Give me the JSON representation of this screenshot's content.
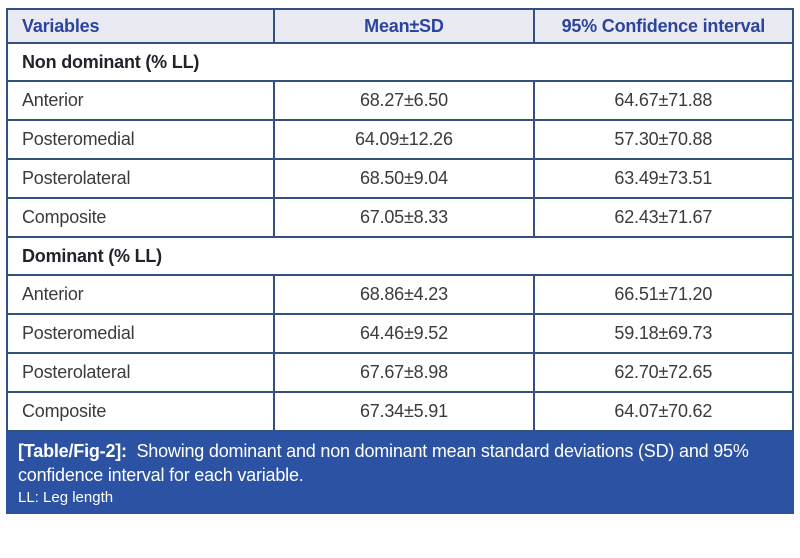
{
  "table": {
    "header": {
      "variables": "Variables",
      "mean_sd": "Mean±SD",
      "ci": "95% Confidence interval"
    },
    "sections": [
      {
        "label": "Non dominant (% LL)",
        "rows": [
          [
            "Anterior",
            "68.27±6.50",
            "64.67±71.88"
          ],
          [
            "Posteromedial",
            "64.09±12.26",
            "57.30±70.88"
          ],
          [
            "Posterolateral",
            "68.50±9.04",
            "63.49±73.51"
          ],
          [
            "Composite",
            "67.05±8.33",
            "62.43±71.67"
          ]
        ]
      },
      {
        "label": "Dominant (% LL)",
        "rows": [
          [
            "Anterior",
            "68.86±4.23",
            "66.51±71.20"
          ],
          [
            "Posteromedial",
            "64.46±9.52",
            "59.18±69.73"
          ],
          [
            "Posterolateral",
            "67.67±8.98",
            "62.70±72.65"
          ],
          [
            "Composite",
            "67.34±5.91",
            "64.07±70.62"
          ]
        ]
      }
    ]
  },
  "caption": {
    "tag": "[Table/Fig-2]:",
    "text": "Showing dominant and non dominant mean standard deviations (SD) and 95% confidence interval for each variable.",
    "footnote": "LL: Leg length"
  },
  "colors": {
    "border": "#33517f",
    "header_bg": "#eaeaf3",
    "header_text": "#2c449c",
    "section_text": "#22232b",
    "body_text": "#3b3b3b",
    "caption_bg": "#2b52a3",
    "caption_text": "#ffffff"
  }
}
